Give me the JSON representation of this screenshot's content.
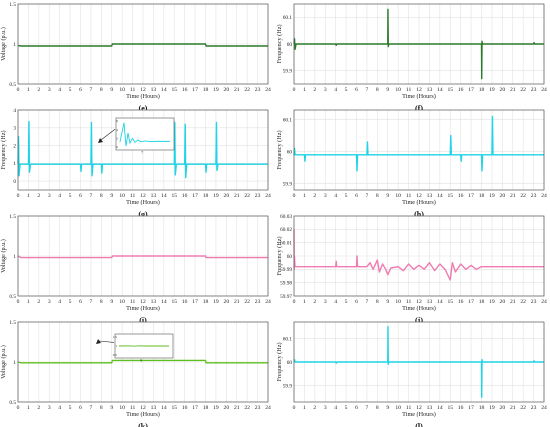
{
  "chart_data": [
    {
      "id": "e",
      "caption": "(e)",
      "type": "line",
      "ylabel": "Voltage (p.u.)",
      "xlabel": "Time (Hours)",
      "xlim": [
        0,
        24
      ],
      "ylim": [
        0.5,
        1.5
      ],
      "xticks": [
        "0",
        "1",
        "2",
        "3",
        "4",
        "5",
        "6",
        "7",
        "8",
        "9",
        "10",
        "11",
        "12",
        "13",
        "14",
        "15",
        "16",
        "17",
        "18",
        "19",
        "20",
        "21",
        "22",
        "23",
        "24"
      ],
      "yticks": [
        "0.5",
        "1",
        "1.5"
      ],
      "grid": true,
      "series": [
        {
          "color": "#2a7a2a",
          "x": [
            0,
            0.3,
            9,
            9.05,
            18,
            18.05,
            24
          ],
          "y": [
            0.98,
            0.975,
            0.975,
            1.0,
            1.0,
            0.975,
            0.975
          ]
        }
      ],
      "inset": null
    },
    {
      "id": "f",
      "caption": "(f)",
      "type": "line",
      "ylabel": "Frequency (Hz)",
      "xlabel": "Time (Hours)",
      "xlim": [
        0,
        24
      ],
      "ylim": [
        59.85,
        60.15
      ],
      "xticks": [
        "0",
        "1",
        "2",
        "3",
        "4",
        "5",
        "6",
        "7",
        "8",
        "9",
        "10",
        "11",
        "12",
        "13",
        "14",
        "15",
        "16",
        "17",
        "18",
        "19",
        "20",
        "21",
        "22",
        "23",
        "24"
      ],
      "yticks": [
        "59.9",
        "60",
        "60.1"
      ],
      "grid": true,
      "series": [
        {
          "color": "#2a7a2a",
          "x": [
            0,
            0.05,
            0.1,
            0.2,
            4,
            4.05,
            4.1,
            9,
            9.02,
            9.05,
            9.1,
            18,
            18.02,
            18.05,
            18.1,
            23,
            23.05,
            23.1,
            24
          ],
          "y": [
            60,
            60.02,
            59.98,
            60,
            60,
            59.995,
            60,
            60,
            60.13,
            59.99,
            60,
            60,
            59.87,
            60.01,
            60,
            60,
            60.005,
            60,
            60
          ]
        }
      ],
      "inset": null
    },
    {
      "id": "g",
      "caption": "(g)",
      "type": "line",
      "ylabel": "Frequency (Hz)",
      "xlabel": "Time (Hours)",
      "xlim": [
        0,
        24
      ],
      "ylim": [
        -0.5,
        4
      ],
      "xticks": [
        "0",
        "1",
        "2",
        "3",
        "4",
        "5",
        "6",
        "7",
        "8",
        "9",
        "10",
        "11",
        "12",
        "13",
        "14",
        "15",
        "16",
        "17",
        "18",
        "19",
        "20",
        "21",
        "22",
        "23",
        "24"
      ],
      "yticks": [
        "0",
        "1",
        "2",
        "3",
        "4"
      ],
      "grid": true,
      "series": [
        {
          "color": "#1ed4e6",
          "x": [
            0,
            0.05,
            0.1,
            0.2,
            1,
            1.05,
            1.1,
            1.2,
            6,
            6.05,
            6.1,
            7,
            7.05,
            7.1,
            7.2,
            8,
            8.05,
            8.1,
            15,
            15.05,
            15.1,
            15.2,
            16,
            16.05,
            16.1,
            16.2,
            18,
            18.05,
            18.1,
            19,
            19.05,
            19.1,
            19.2,
            24
          ],
          "y": [
            0.95,
            2.5,
            0.3,
            0.95,
            0.95,
            3.35,
            0.5,
            0.95,
            0.95,
            0.55,
            0.95,
            0.95,
            3.3,
            0.3,
            0.95,
            0.95,
            0.45,
            0.95,
            0.95,
            3.3,
            0.35,
            0.95,
            0.95,
            3.2,
            0.2,
            0.95,
            0.95,
            0.5,
            0.95,
            0.95,
            3.3,
            0.6,
            0.95,
            0.95
          ]
        }
      ],
      "inset": {
        "xlabel": "7",
        "yticks": [
          "0",
          "2",
          "4",
          "6"
        ],
        "ylim": [
          0,
          6
        ],
        "x": [
          0,
          0.08,
          0.12,
          0.16,
          0.2,
          0.25,
          0.3,
          0.36,
          0.42,
          0.5,
          0.6,
          0.7,
          1
        ],
        "y": [
          1.2,
          5.6,
          0.2,
          3.2,
          0.9,
          2.0,
          1.1,
          1.6,
          1.2,
          1.4,
          1.25,
          1.3,
          1.3
        ]
      }
    },
    {
      "id": "h",
      "caption": "(h)",
      "type": "line",
      "ylabel": "Frequency (Hz)",
      "xlabel": "Time (Hours)",
      "xlim": [
        0,
        24
      ],
      "ylim": [
        59.88,
        60.13
      ],
      "xticks": [
        "0",
        "1",
        "2",
        "3",
        "4",
        "5",
        "6",
        "7",
        "8",
        "9",
        "10",
        "11",
        "12",
        "13",
        "14",
        "15",
        "16",
        "17",
        "18",
        "19",
        "20",
        "21",
        "22",
        "23",
        "24"
      ],
      "yticks": [
        "59.9",
        "60",
        "60.1"
      ],
      "grid": true,
      "series": [
        {
          "color": "#1ed4e6",
          "x": [
            0,
            0.05,
            0.1,
            1,
            1.05,
            1.1,
            6,
            6.05,
            6.1,
            7,
            7.05,
            7.1,
            15,
            15.05,
            15.1,
            16,
            16.05,
            16.1,
            18,
            18.05,
            18.1,
            19,
            19.05,
            19.1,
            24
          ],
          "y": [
            59.99,
            60.01,
            59.99,
            59.99,
            59.97,
            59.99,
            59.99,
            59.94,
            59.99,
            59.99,
            60.03,
            59.99,
            59.99,
            60.05,
            59.99,
            59.99,
            59.97,
            59.99,
            59.99,
            59.94,
            59.99,
            59.99,
            60.11,
            59.99,
            59.99
          ]
        }
      ],
      "inset": null
    },
    {
      "id": "i",
      "caption": "(i)",
      "type": "line",
      "ylabel": "Voltage (p.u.)",
      "xlabel": "Time (Hours)",
      "xlim": [
        0,
        24
      ],
      "ylim": [
        0.5,
        1.5
      ],
      "xticks": [
        "0",
        "1",
        "2",
        "3",
        "4",
        "5",
        "6",
        "7",
        "8",
        "9",
        "10",
        "11",
        "12",
        "13",
        "14",
        "15",
        "16",
        "17",
        "18",
        "19",
        "20",
        "21",
        "22",
        "23",
        "24"
      ],
      "yticks": [
        "0.5",
        "1",
        "1.5"
      ],
      "grid": true,
      "series": [
        {
          "color": "#f07bb0",
          "x": [
            0,
            0.3,
            9,
            9.05,
            18,
            18.05,
            24
          ],
          "y": [
            1.0,
            0.98,
            0.98,
            1.0,
            1.0,
            0.98,
            0.98
          ]
        }
      ],
      "inset": null
    },
    {
      "id": "j",
      "caption": "(j)",
      "type": "line",
      "ylabel": "Frequency (Hz)",
      "xlabel": "Time (Hours)",
      "xlim": [
        0,
        24
      ],
      "ylim": [
        59.97,
        60.03
      ],
      "xticks": [
        "0",
        "1",
        "2",
        "3",
        "4",
        "5",
        "6",
        "7",
        "8",
        "9",
        "10",
        "11",
        "12",
        "13",
        "14",
        "15",
        "16",
        "17",
        "18",
        "19",
        "20",
        "21",
        "22",
        "23",
        "24"
      ],
      "yticks": [
        "59.97",
        "59.98",
        "59.99",
        "60",
        "60.01",
        "60.02",
        "60.03"
      ],
      "grid": true,
      "series": [
        {
          "color": "#f07bb0",
          "x": [
            0,
            0.02,
            0.04,
            0.1,
            4,
            4.05,
            4.1,
            6,
            6.05,
            6.1,
            7,
            7.3,
            7.6,
            8,
            8.2,
            8.5,
            8.8,
            9,
            9.3,
            10,
            10.5,
            11,
            11.5,
            12,
            12.5,
            13,
            13.5,
            14,
            14.5,
            15,
            15.2,
            15.5,
            16,
            16.5,
            17,
            17.5,
            18,
            18.5,
            24
          ],
          "y": [
            60.02,
            59.99,
            60.0,
            59.992,
            59.992,
            59.996,
            59.992,
            59.992,
            60.0,
            59.992,
            59.992,
            59.995,
            59.99,
            59.997,
            59.988,
            59.994,
            59.99,
            59.986,
            59.991,
            59.992,
            59.989,
            59.994,
            59.99,
            59.993,
            59.99,
            59.995,
            59.989,
            59.994,
            59.99,
            59.982,
            59.995,
            59.988,
            59.994,
            59.99,
            59.993,
            59.99,
            59.992,
            59.992,
            59.992
          ]
        }
      ],
      "inset": null
    },
    {
      "id": "k",
      "caption": "(k)",
      "type": "line",
      "ylabel": "Voltage (p.u.)",
      "xlabel": "Time (Hours)",
      "xlim": [
        0,
        24
      ],
      "ylim": [
        0.5,
        1.5
      ],
      "xticks": [
        "0",
        "1",
        "2",
        "3",
        "4",
        "5",
        "6",
        "7",
        "8",
        "9",
        "10",
        "11",
        "12",
        "13",
        "14",
        "15",
        "16",
        "17",
        "18",
        "19",
        "20",
        "21",
        "22",
        "23",
        "24"
      ],
      "yticks": [
        "0.5",
        "1",
        "1.5"
      ],
      "grid": true,
      "series": [
        {
          "color": "#5cbf1f",
          "x": [
            0,
            0.3,
            9,
            9.05,
            18,
            18.05,
            24
          ],
          "y": [
            1.0,
            0.99,
            0.99,
            1.02,
            1.02,
            0.99,
            0.99
          ]
        }
      ],
      "inset": {
        "xlabel": "9",
        "yticks": [
          "0.5",
          "1",
          "1.5"
        ],
        "ylim": [
          0.5,
          1.5
        ],
        "x": [
          0,
          0.1,
          0.2,
          0.3,
          0.4,
          0.5,
          0.6,
          0.7,
          0.8,
          0.9,
          1
        ],
        "y": [
          1.0,
          1.0,
          1.01,
          0.99,
          1.01,
          1.0,
          1.0,
          1.0,
          1.0,
          1.0,
          1.0
        ]
      }
    },
    {
      "id": "l",
      "caption": "(l)",
      "type": "line",
      "ylabel": "Frequency (Hz)",
      "xlabel": "Time (Hours)",
      "xlim": [
        0,
        24
      ],
      "ylim": [
        59.83,
        60.17
      ],
      "xticks": [
        "0",
        "1",
        "2",
        "3",
        "4",
        "5",
        "6",
        "7",
        "8",
        "9",
        "10",
        "11",
        "12",
        "13",
        "14",
        "15",
        "16",
        "17",
        "18",
        "19",
        "20",
        "21",
        "22",
        "23",
        "24"
      ],
      "yticks": [
        "59.9",
        "60",
        "60.1"
      ],
      "grid": true,
      "series": [
        {
          "color": "#1ed4e6",
          "x": [
            0,
            0.05,
            0.1,
            4,
            4.05,
            4.1,
            9,
            9.02,
            9.05,
            9.1,
            18,
            18.02,
            18.05,
            18.1,
            23,
            23.05,
            23.1,
            24
          ],
          "y": [
            60,
            60.01,
            60,
            60,
            59.995,
            60,
            60,
            60.15,
            59.99,
            60,
            60,
            59.85,
            60.01,
            60,
            60,
            60.005,
            60,
            60
          ]
        }
      ],
      "inset": null
    }
  ]
}
